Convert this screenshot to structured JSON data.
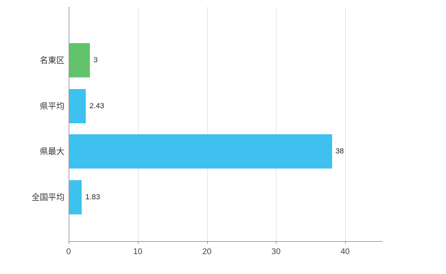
{
  "chart_data": {
    "type": "bar",
    "orientation": "horizontal",
    "title": "",
    "xlabel": "",
    "ylabel": "",
    "categories": [
      "名東区",
      "県平均",
      "県最大",
      "全国平均"
    ],
    "values": [
      3,
      2.43,
      38,
      1.83
    ],
    "value_labels": [
      "3",
      "2.43",
      "38",
      "1.83"
    ],
    "bar_colors": [
      "#61c36c",
      "#3fc1f0",
      "#3fc1f0",
      "#3fc1f0"
    ],
    "xticks": [
      0,
      10,
      20,
      30,
      40
    ],
    "xlim": [
      0,
      45.4
    ],
    "grid": true,
    "legend": null,
    "colors": {
      "green_bar": "#61c36c",
      "blue_bar": "#3fc1f0",
      "gridline": "#e6e6e6",
      "axis": "#9a9a9a",
      "background": "#ffffff"
    }
  }
}
